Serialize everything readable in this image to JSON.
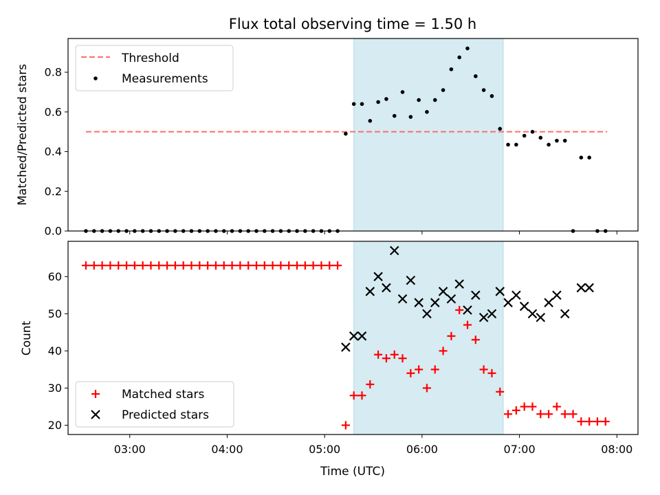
{
  "chart_data": [
    {
      "type": "scatter",
      "title": "Flux total observing time = 1.50 h",
      "xlabel": "",
      "ylabel": "Matched/Predicted stars",
      "xlim": [
        "02:22",
        "08:13"
      ],
      "ylim": [
        0,
        0.97
      ],
      "yticks": [
        0.0,
        0.2,
        0.4,
        0.6,
        0.8
      ],
      "yticklabels": [
        "0.0",
        "0.2",
        "0.4",
        "0.6",
        "0.8"
      ],
      "grid": false,
      "legend": "upper left",
      "shaded_span": [
        "05:18",
        "06:50"
      ],
      "shade_color": "#add8e6",
      "threshold": {
        "name": "Threshold",
        "value": 0.5,
        "x_start": "02:33",
        "x_end": "07:54",
        "color": "#ff6b6b",
        "style": "dashed"
      },
      "series": [
        {
          "name": "Measurements",
          "color": "#000000",
          "marker": "dot",
          "points": [
            [
              "02:33",
              0.0
            ],
            [
              "02:38",
              0.0
            ],
            [
              "02:43",
              0.0
            ],
            [
              "02:48",
              0.0
            ],
            [
              "02:53",
              0.0
            ],
            [
              "02:58",
              0.0
            ],
            [
              "03:03",
              0.0
            ],
            [
              "03:08",
              0.0
            ],
            [
              "03:13",
              0.0
            ],
            [
              "03:18",
              0.0
            ],
            [
              "03:23",
              0.0
            ],
            [
              "03:28",
              0.0
            ],
            [
              "03:33",
              0.0
            ],
            [
              "03:38",
              0.0
            ],
            [
              "03:43",
              0.0
            ],
            [
              "03:48",
              0.0
            ],
            [
              "03:53",
              0.0
            ],
            [
              "03:58",
              0.0
            ],
            [
              "04:03",
              0.0
            ],
            [
              "04:08",
              0.0
            ],
            [
              "04:13",
              0.0
            ],
            [
              "04:18",
              0.0
            ],
            [
              "04:23",
              0.0
            ],
            [
              "04:28",
              0.0
            ],
            [
              "04:33",
              0.0
            ],
            [
              "04:38",
              0.0
            ],
            [
              "04:43",
              0.0
            ],
            [
              "04:48",
              0.0
            ],
            [
              "04:53",
              0.0
            ],
            [
              "04:58",
              0.0
            ],
            [
              "05:03",
              0.0
            ],
            [
              "05:08",
              0.0
            ],
            [
              "05:13",
              0.49
            ],
            [
              "05:18",
              0.64
            ],
            [
              "05:23",
              0.64
            ],
            [
              "05:28",
              0.555
            ],
            [
              "05:33",
              0.65
            ],
            [
              "05:38",
              0.665
            ],
            [
              "05:43",
              0.58
            ],
            [
              "05:48",
              0.7
            ],
            [
              "05:53",
              0.575
            ],
            [
              "05:58",
              0.66
            ],
            [
              "06:03",
              0.6
            ],
            [
              "06:08",
              0.66
            ],
            [
              "06:13",
              0.71
            ],
            [
              "06:18",
              0.815
            ],
            [
              "06:23",
              0.875
            ],
            [
              "06:28",
              0.92
            ],
            [
              "06:33",
              0.78
            ],
            [
              "06:38",
              0.71
            ],
            [
              "06:43",
              0.68
            ],
            [
              "06:48",
              0.515
            ],
            [
              "06:53",
              0.435
            ],
            [
              "06:58",
              0.435
            ],
            [
              "07:03",
              0.48
            ],
            [
              "07:08",
              0.5
            ],
            [
              "07:13",
              0.47
            ],
            [
              "07:18",
              0.435
            ],
            [
              "07:23",
              0.455
            ],
            [
              "07:28",
              0.455
            ],
            [
              "07:33",
              0.0
            ],
            [
              "07:38",
              0.37
            ],
            [
              "07:43",
              0.37
            ],
            [
              "07:48",
              0.0
            ],
            [
              "07:53",
              0.0
            ]
          ]
        }
      ]
    },
    {
      "type": "scatter",
      "title": "",
      "xlabel": "Time (UTC)",
      "ylabel": "Count",
      "xlim": [
        "02:22",
        "08:13"
      ],
      "ylim": [
        17.5,
        69.5
      ],
      "yticks": [
        20,
        30,
        40,
        50,
        60
      ],
      "yticklabels": [
        "20",
        "30",
        "40",
        "50",
        "60"
      ],
      "xticks": [
        "03:00",
        "04:00",
        "05:00",
        "06:00",
        "07:00",
        "08:00"
      ],
      "xticklabels": [
        "03:00",
        "04:00",
        "05:00",
        "06:00",
        "07:00",
        "08:00"
      ],
      "grid": false,
      "legend": "lower left",
      "shaded_span": [
        "05:18",
        "06:50"
      ],
      "shade_color": "#add8e6",
      "series": [
        {
          "name": "Matched stars",
          "color": "#ff0000",
          "marker": "plus",
          "points": [
            [
              "02:33",
              63
            ],
            [
              "02:38",
              63
            ],
            [
              "02:43",
              63
            ],
            [
              "02:48",
              63
            ],
            [
              "02:53",
              63
            ],
            [
              "02:58",
              63
            ],
            [
              "03:03",
              63
            ],
            [
              "03:08",
              63
            ],
            [
              "03:13",
              63
            ],
            [
              "03:18",
              63
            ],
            [
              "03:23",
              63
            ],
            [
              "03:28",
              63
            ],
            [
              "03:33",
              63
            ],
            [
              "03:38",
              63
            ],
            [
              "03:43",
              63
            ],
            [
              "03:48",
              63
            ],
            [
              "03:53",
              63
            ],
            [
              "03:58",
              63
            ],
            [
              "04:03",
              63
            ],
            [
              "04:08",
              63
            ],
            [
              "04:13",
              63
            ],
            [
              "04:18",
              63
            ],
            [
              "04:23",
              63
            ],
            [
              "04:28",
              63
            ],
            [
              "04:33",
              63
            ],
            [
              "04:38",
              63
            ],
            [
              "04:43",
              63
            ],
            [
              "04:48",
              63
            ],
            [
              "04:53",
              63
            ],
            [
              "04:58",
              63
            ],
            [
              "05:03",
              63
            ],
            [
              "05:08",
              63
            ],
            [
              "05:13",
              20
            ],
            [
              "05:18",
              28
            ],
            [
              "05:23",
              28
            ],
            [
              "05:28",
              31
            ],
            [
              "05:33",
              39
            ],
            [
              "05:38",
              38
            ],
            [
              "05:43",
              39
            ],
            [
              "05:48",
              38
            ],
            [
              "05:53",
              34
            ],
            [
              "05:58",
              35
            ],
            [
              "06:03",
              30
            ],
            [
              "06:08",
              35
            ],
            [
              "06:13",
              40
            ],
            [
              "06:18",
              44
            ],
            [
              "06:23",
              51
            ],
            [
              "06:28",
              47
            ],
            [
              "06:33",
              43
            ],
            [
              "06:38",
              35
            ],
            [
              "06:43",
              34
            ],
            [
              "06:48",
              29
            ],
            [
              "06:53",
              23
            ],
            [
              "06:58",
              24
            ],
            [
              "07:03",
              25
            ],
            [
              "07:08",
              25
            ],
            [
              "07:13",
              23
            ],
            [
              "07:18",
              23
            ],
            [
              "07:23",
              25
            ],
            [
              "07:28",
              23
            ],
            [
              "07:33",
              23
            ],
            [
              "07:38",
              21
            ],
            [
              "07:43",
              21
            ],
            [
              "07:48",
              21
            ],
            [
              "07:53",
              21
            ]
          ]
        },
        {
          "name": "Predicted stars",
          "color": "#000000",
          "marker": "x",
          "points": [
            [
              "05:13",
              41
            ],
            [
              "05:18",
              44
            ],
            [
              "05:23",
              44
            ],
            [
              "05:28",
              56
            ],
            [
              "05:33",
              60
            ],
            [
              "05:38",
              57
            ],
            [
              "05:43",
              67
            ],
            [
              "05:48",
              54
            ],
            [
              "05:53",
              59
            ],
            [
              "05:58",
              53
            ],
            [
              "06:03",
              50
            ],
            [
              "06:08",
              53
            ],
            [
              "06:13",
              56
            ],
            [
              "06:18",
              54
            ],
            [
              "06:23",
              58
            ],
            [
              "06:28",
              51
            ],
            [
              "06:33",
              55
            ],
            [
              "06:38",
              49
            ],
            [
              "06:43",
              50
            ],
            [
              "06:48",
              56
            ],
            [
              "06:53",
              53
            ],
            [
              "06:58",
              55
            ],
            [
              "07:03",
              52
            ],
            [
              "07:08",
              50
            ],
            [
              "07:13",
              49
            ],
            [
              "07:18",
              53
            ],
            [
              "07:23",
              55
            ],
            [
              "07:28",
              50
            ],
            [
              "07:38",
              57
            ],
            [
              "07:43",
              57
            ]
          ]
        }
      ]
    }
  ]
}
